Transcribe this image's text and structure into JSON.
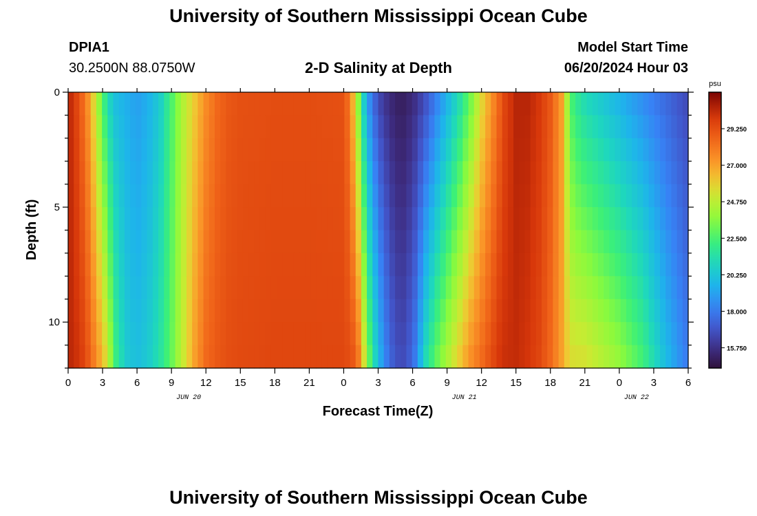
{
  "header": {
    "title": "University of Southern Mississippi Ocean Cube",
    "station_id": "DPIA1",
    "station_coords": "30.2500N  88.0750W",
    "plot_title": "2-D Salinity at Depth",
    "model_start_label": "Model Start Time",
    "model_start_value": "06/20/2024 Hour 03"
  },
  "footer": {
    "title": "University of Southern Mississippi Ocean Cube"
  },
  "chart_data": {
    "type": "heatmap",
    "title": "2-D Salinity at Depth",
    "xlabel": "Forecast Time(Z)",
    "ylabel": "Depth (ft)",
    "x_tick_labels": [
      "0",
      "3",
      "6",
      "9",
      "12",
      "15",
      "18",
      "21",
      "0",
      "3",
      "6",
      "9",
      "12",
      "15",
      "18",
      "21",
      "0",
      "3",
      "6"
    ],
    "x_date_labels": [
      {
        "label": "JUN 20",
        "at_tick": 3.5
      },
      {
        "label": "JUN 21",
        "at_tick": 11.5
      },
      {
        "label": "JUN 22",
        "at_tick": 16.5
      }
    ],
    "y_ticks": [
      0,
      5,
      10
    ],
    "ylim": [
      0,
      12
    ],
    "xlim_hours": [
      0,
      54
    ],
    "colorbar": {
      "unit": "psu",
      "vmin": 14.5,
      "vmax": 31.5,
      "tick_labels": [
        "29.250",
        "27.000",
        "24.750",
        "22.500",
        "20.250",
        "18.000",
        "15.750"
      ],
      "tick_values": [
        29.25,
        27.0,
        24.75,
        22.5,
        20.25,
        18.0,
        15.75
      ]
    },
    "time_profile": {
      "description_units": "hours from start vs salinity psu at surface and at bottom",
      "hours": [
        0,
        0.5,
        1,
        1.5,
        2,
        2.5,
        3,
        3.5,
        4,
        5,
        6,
        7,
        8,
        9,
        10,
        11,
        12,
        13,
        14,
        15,
        18,
        21,
        24,
        24.5,
        25,
        25.5,
        26,
        27,
        28,
        29,
        30,
        30.5,
        31,
        32,
        33,
        34,
        35,
        36,
        37,
        37.5,
        38,
        39,
        40,
        41,
        42,
        43,
        43.5,
        44,
        45,
        46,
        48,
        50,
        52,
        54
      ],
      "surface": [
        30.5,
        30.0,
        29.0,
        28.0,
        26.5,
        24.5,
        22.5,
        21.0,
        20.0,
        19.5,
        19.0,
        19.5,
        20.5,
        22.5,
        24.5,
        26.0,
        27.5,
        28.5,
        29.0,
        29.2,
        29.3,
        29.3,
        29.2,
        28.0,
        25.5,
        22.0,
        19.0,
        16.5,
        15.5,
        15.0,
        15.5,
        16.0,
        16.5,
        18.0,
        19.5,
        21.0,
        23.0,
        25.5,
        27.5,
        28.5,
        29.5,
        30.5,
        30.5,
        30.0,
        29.0,
        27.0,
        24.0,
        22.0,
        21.0,
        20.5,
        19.5,
        18.5,
        17.5,
        16.5
      ],
      "bottom": [
        30.5,
        30.3,
        30.0,
        29.5,
        28.5,
        27.5,
        26.5,
        25.0,
        22.5,
        20.5,
        20.0,
        20.5,
        21.5,
        23.0,
        25.0,
        27.0,
        28.5,
        29.0,
        29.3,
        29.4,
        29.5,
        29.5,
        29.5,
        29.3,
        29.0,
        27.5,
        24.0,
        20.0,
        17.5,
        16.5,
        17.5,
        19.0,
        21.0,
        23.0,
        24.5,
        26.0,
        27.5,
        28.5,
        29.5,
        30.0,
        30.2,
        30.3,
        30.0,
        29.5,
        28.5,
        27.0,
        26.0,
        25.5,
        25.5,
        25.0,
        24.0,
        22.5,
        20.0,
        18.0
      ]
    }
  }
}
